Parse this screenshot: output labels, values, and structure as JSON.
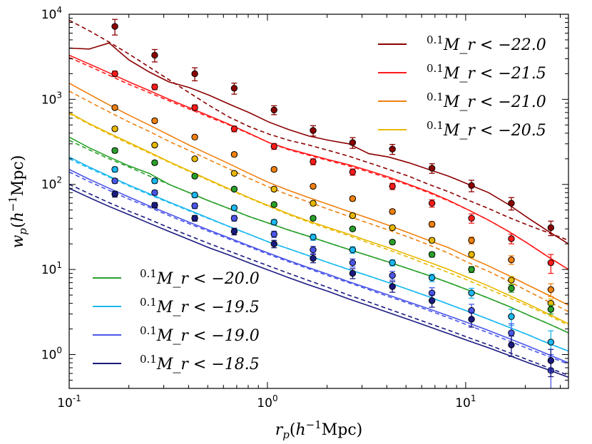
{
  "chart_data": {
    "type": "line",
    "title": "",
    "xlabel": "r_p(h^{-1}Mpc)",
    "ylabel": "w_p(h^{-1}Mpc)",
    "xscale": "log",
    "yscale": "log",
    "xlim": [
      0.1,
      33
    ],
    "ylim": [
      0.4,
      10000
    ],
    "x_ticks": [
      {
        "base": "10",
        "exp": "-1",
        "value": 0.1
      },
      {
        "base": "10",
        "exp": "0",
        "value": 1
      },
      {
        "base": "10",
        "exp": "1",
        "value": 10
      }
    ],
    "y_ticks": [
      {
        "base": "10",
        "exp": "0",
        "value": 1
      },
      {
        "base": "10",
        "exp": "1",
        "value": 10
      },
      {
        "base": "10",
        "exp": "2",
        "value": 100
      },
      {
        "base": "10",
        "exp": "3",
        "value": 1000
      },
      {
        "base": "10",
        "exp": "4",
        "value": 10000
      }
    ],
    "x": [
      0.17,
      0.27,
      0.43,
      0.68,
      1.08,
      1.7,
      2.69,
      4.27,
      6.76,
      10.7,
      17.0,
      26.9
    ],
    "legend_upper_position": "top-right",
    "legend_lower_position": "bottom-left",
    "series": [
      {
        "name": "0.1 Mr < -22.0",
        "sup": "0.1",
        "label": "M_r < −22.0",
        "color": "#8b0000",
        "legend_group": "upper",
        "points": [
          7200,
          3300,
          2000,
          1350,
          750,
          430,
          310,
          260,
          155,
          97,
          60,
          31
        ],
        "errors": [
          1500,
          550,
          350,
          200,
          90,
          60,
          45,
          35,
          20,
          15,
          10,
          6
        ],
        "model_solid": [
          4000,
          3900,
          4600,
          2900,
          2100,
          1600,
          1380,
          1120,
          880,
          700,
          540,
          440,
          370,
          330,
          300,
          230,
          210,
          180,
          150,
          125,
          100,
          80,
          58,
          40,
          28,
          20
        ],
        "model_dashed": [
          8500,
          6400,
          4700,
          3400,
          2400,
          1700,
          1200,
          850,
          620,
          480,
          390,
          330,
          290,
          250,
          215,
          180,
          150,
          125,
          100,
          82,
          65,
          52,
          41,
          33,
          27,
          22
        ]
      },
      {
        "name": "0.1 Mr < -21.5",
        "sup": "0.1",
        "label": "M_r < −21.5",
        "color": "#ff1a1a",
        "legend_group": "upper",
        "points": [
          2000,
          1400,
          800,
          450,
          280,
          185,
          140,
          95,
          60,
          40,
          23,
          12
        ],
        "errors": [
          150,
          100,
          60,
          35,
          22,
          15,
          12,
          8,
          6,
          5,
          3,
          3
        ],
        "model_solid": [
          3300,
          2600,
          2050,
          1600,
          1270,
          1000,
          800,
          640,
          510,
          400,
          310,
          260,
          225,
          195,
          170,
          145,
          122,
          100,
          82,
          65,
          50,
          38,
          28,
          20,
          14,
          10
        ],
        "model_dashed": [
          3100,
          2450,
          1920,
          1500,
          1200,
          960,
          770,
          620,
          500,
          395,
          310,
          255,
          220,
          190,
          165,
          140,
          118,
          98,
          80,
          64,
          50,
          38,
          28,
          20,
          14,
          10
        ]
      },
      {
        "name": "0.1 Mr < -21.0",
        "sup": "0.1",
        "label": "M_r < −21.0",
        "color": "#f08010",
        "legend_group": "upper",
        "points": [
          800,
          560,
          360,
          225,
          150,
          95,
          68,
          48,
          34,
          22,
          13,
          5.8
        ],
        "errors": [
          40,
          30,
          20,
          12,
          8,
          5,
          4,
          3,
          2.5,
          2,
          1.5,
          1
        ],
        "model_solid": [
          1550,
          1150,
          860,
          650,
          500,
          380,
          290,
          225,
          175,
          135,
          105,
          85,
          70,
          58,
          48,
          40,
          33,
          27,
          22,
          18,
          14,
          11,
          8.5,
          6.5,
          5,
          3.8
        ],
        "model_dashed": [
          1250,
          940,
          710,
          540,
          420,
          320,
          250,
          195,
          152,
          118,
          93,
          75,
          62,
          51,
          42,
          35,
          29,
          24,
          19.5,
          15.5,
          12,
          9.5,
          7.3,
          5.5,
          4.2,
          3.2
        ]
      },
      {
        "name": "0.1 Mr < -20.5",
        "sup": "0.1",
        "label": "M_r < −20.5",
        "color": "#e8b800",
        "legend_group": "upper",
        "points": [
          450,
          290,
          200,
          135,
          88,
          60,
          43,
          31,
          22,
          15,
          7.5,
          4
        ],
        "errors": [
          25,
          15,
          10,
          7,
          5,
          4,
          3,
          2,
          1.5,
          1.2,
          0.8,
          0.5
        ],
        "model_solid": [
          700,
          520,
          400,
          310,
          240,
          185,
          145,
          113,
          89,
          70,
          56,
          45,
          37,
          31,
          26,
          21.5,
          18,
          14.8,
          12.2,
          10,
          8,
          6.4,
          5,
          3.9,
          3,
          2.3
        ],
        "model_dashed": [
          680,
          510,
          390,
          300,
          235,
          182,
          142,
          111,
          87,
          69,
          55,
          44,
          36,
          30,
          25,
          20.5,
          17,
          13.9,
          11.3,
          9.2,
          7.4,
          5.9,
          4.7,
          3.7,
          2.9,
          2.2
        ]
      },
      {
        "name": "0.1 Mr < -20.0",
        "sup": "0.1",
        "label": "M_r < −20.0",
        "color": "#2aa02a",
        "legend_group": "lower",
        "points": [
          250,
          180,
          125,
          88,
          58,
          40,
          30,
          21,
          15,
          10,
          6,
          3.4
        ],
        "errors": [
          15,
          10,
          6,
          4,
          3,
          2,
          1.5,
          1.2,
          1,
          0.8,
          0.6,
          0.4
        ],
        "model_solid": [
          360,
          270,
          210,
          165,
          135,
          100,
          80,
          64,
          52,
          42,
          35,
          29,
          24.5,
          20.5,
          17.2,
          14.5,
          12.2,
          10.2,
          8.5,
          7,
          5.7,
          4.6,
          3.7,
          2.9,
          2.3,
          1.8
        ],
        "model_dashed": [
          330,
          255,
          200,
          160,
          126,
          100,
          80,
          64,
          52,
          42,
          35,
          29,
          24.5,
          20.5,
          17.2,
          14.5,
          12.2,
          10.2,
          8.5,
          7,
          5.7,
          4.6,
          3.7,
          2.9,
          2.3,
          1.8
        ]
      },
      {
        "name": "0.1 Mr < -19.5",
        "sup": "0.1",
        "label": "M_r < −19.5",
        "color": "#1ab8f0",
        "legend_group": "lower",
        "points": [
          150,
          110,
          75,
          53,
          36,
          24,
          17,
          12,
          8,
          5.3,
          2.8,
          1.4
        ],
        "errors": [
          10,
          7,
          5,
          3.5,
          2.5,
          2,
          1.5,
          1,
          0.8,
          0.7,
          0.6,
          0.5
        ],
        "model_solid": [
          210,
          160,
          125,
          98,
          78,
          62,
          50,
          40,
          32,
          26,
          21,
          17.5,
          14.5,
          12,
          10,
          8.4,
          7,
          5.8,
          4.8,
          3.9,
          3.2,
          2.6,
          2.1,
          1.7,
          1.35,
          1.1
        ],
        "model_dashed": [
          200,
          155,
          122,
          96,
          76,
          61,
          49,
          39.5,
          32,
          26,
          21,
          17.5,
          14.5,
          12,
          10,
          8.4,
          7,
          5.8,
          4.8,
          3.9,
          3.2,
          2.6,
          2.1,
          1.7,
          1.35,
          1.1
        ]
      },
      {
        "name": "0.1 Mr < -19.0",
        "sup": "0.1",
        "label": "M_r < −19.0",
        "color": "#4a55e8",
        "legend_group": "lower",
        "points": [
          110,
          80,
          56,
          40,
          26,
          17,
          12,
          8.5,
          5.3,
          3.3,
          1.8,
          0.65
        ],
        "errors": [
          7,
          5,
          4,
          3,
          2.2,
          1.7,
          1.3,
          1,
          0.8,
          0.6,
          0.5,
          0.35
        ],
        "model_solid": [
          150,
          115,
          90,
          71,
          56,
          45,
          36,
          29,
          23.5,
          19,
          15.5,
          12.7,
          10.5,
          8.7,
          7.2,
          6,
          5,
          4.15,
          3.45,
          2.85,
          2.35,
          1.92,
          1.55,
          1.25,
          1,
          0.8
        ],
        "model_dashed": [
          140,
          108,
          85,
          67,
          54,
          43,
          34.5,
          28,
          22.8,
          18.5,
          15,
          12.3,
          10.2,
          8.4,
          7,
          5.8,
          4.8,
          4,
          3.3,
          2.7,
          2.2,
          1.8,
          1.45,
          1.17,
          0.95,
          0.77
        ]
      },
      {
        "name": "0.1 Mr < -18.5",
        "sup": "0.1",
        "label": "M_r < −18.5",
        "color": "#1a1a80",
        "legend_group": "lower",
        "points": [
          77,
          57,
          40,
          28,
          20,
          13.5,
          9,
          6.3,
          4.3,
          2.6,
          1.3,
          0.85
        ],
        "errors": [
          6,
          4,
          3,
          2.5,
          2,
          1.5,
          1.2,
          0.9,
          0.7,
          0.5,
          0.35,
          0.3
        ],
        "model_solid": [
          90,
          70,
          55,
          44,
          35,
          28,
          22.5,
          18,
          14.8,
          12,
          9.8,
          8,
          6.6,
          5.5,
          4.5,
          3.75,
          3.1,
          2.58,
          2.13,
          1.76,
          1.45,
          1.2,
          0.98,
          0.8,
          0.66,
          0.54
        ],
        "model_dashed": [
          100,
          78,
          61,
          48.5,
          39,
          31,
          25,
          20.2,
          16.5,
          13.4,
          11,
          9,
          7.4,
          6.1,
          5,
          4.15,
          3.42,
          2.83,
          2.33,
          1.93,
          1.58,
          1.3,
          1.06,
          0.86,
          0.7,
          0.57
        ]
      }
    ]
  }
}
